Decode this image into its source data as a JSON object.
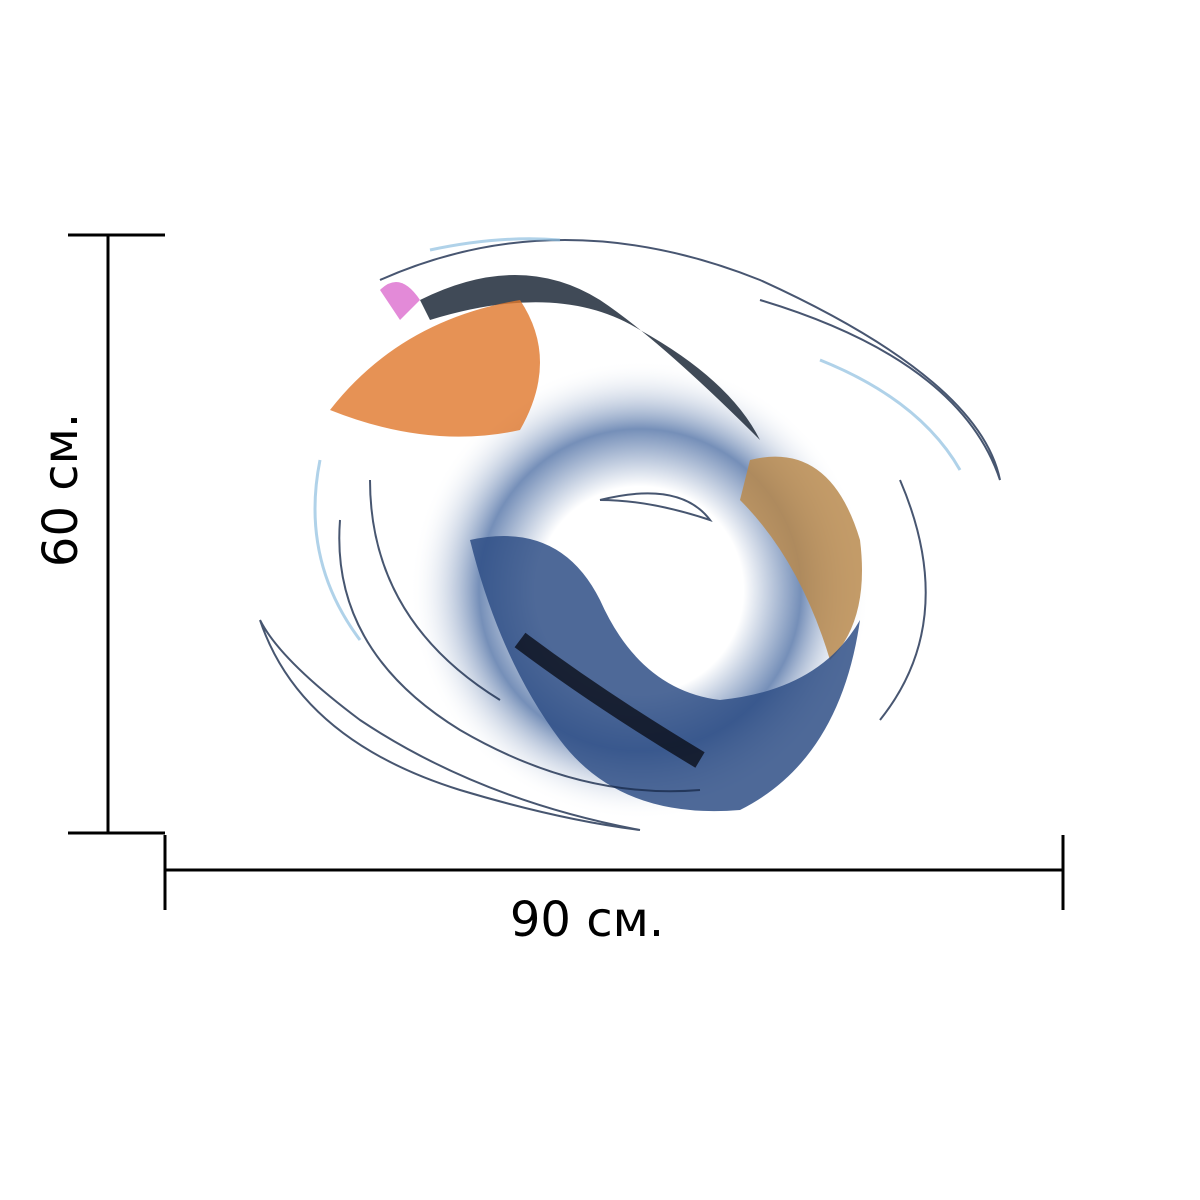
{
  "dimensions": {
    "height": {
      "label": "60 см."
    },
    "width": {
      "label": "90 см."
    }
  }
}
